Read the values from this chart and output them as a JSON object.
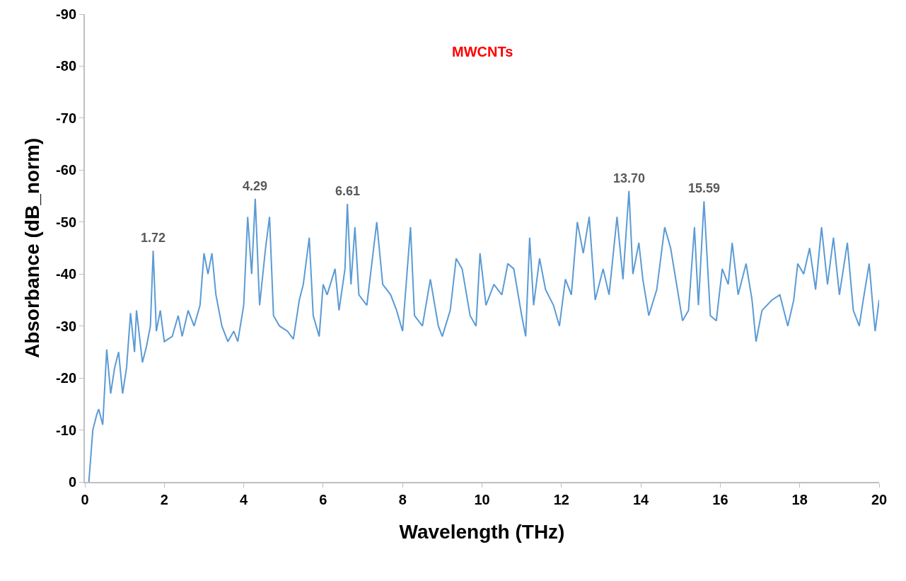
{
  "chart_data": {
    "type": "line",
    "xlabel": "Wavelength (THz)",
    "ylabel": "Absorbance (dB_norm)",
    "annotations": [
      "MWCNTs",
      {
        "text": "1.72",
        "x": 1.72,
        "y": -44.5
      },
      {
        "text": "4.29",
        "x": 4.29,
        "y": -54.5
      },
      {
        "text": "6.61",
        "x": 6.61,
        "y": -53.5
      },
      {
        "text": "13.70",
        "x": 13.7,
        "y": -56
      },
      {
        "text": "15.59",
        "x": 15.59,
        "y": -54
      }
    ],
    "xlim": [
      0,
      20
    ],
    "xticks": [
      0,
      2,
      4,
      6,
      8,
      10,
      12,
      14,
      16,
      18,
      20
    ],
    "ylim": [
      0,
      -90
    ],
    "yticks": [
      0,
      -10,
      -20,
      -30,
      -40,
      -50,
      -60,
      -70,
      -80,
      -90
    ],
    "series": [
      {
        "color": "#5b9bd5",
        "x": [
          0.1,
          0.15,
          0.2,
          0.3,
          0.35,
          0.45,
          0.55,
          0.65,
          0.75,
          0.85,
          0.95,
          1.05,
          1.15,
          1.25,
          1.3,
          1.45,
          1.55,
          1.65,
          1.72,
          1.8,
          1.9,
          2.0,
          2.2,
          2.35,
          2.45,
          2.6,
          2.75,
          2.9,
          3.0,
          3.1,
          3.2,
          3.3,
          3.45,
          3.6,
          3.75,
          3.85,
          4.0,
          4.1,
          4.2,
          4.29,
          4.4,
          4.55,
          4.65,
          4.75,
          4.9,
          5.1,
          5.25,
          5.4,
          5.5,
          5.65,
          5.75,
          5.9,
          6.0,
          6.1,
          6.3,
          6.4,
          6.55,
          6.61,
          6.7,
          6.8,
          6.9,
          7.1,
          7.35,
          7.5,
          7.7,
          7.85,
          8.0,
          8.2,
          8.3,
          8.5,
          8.7,
          8.9,
          9.0,
          9.2,
          9.35,
          9.5,
          9.7,
          9.85,
          9.95,
          10.1,
          10.3,
          10.5,
          10.65,
          10.8,
          11.0,
          11.1,
          11.2,
          11.3,
          11.45,
          11.6,
          11.8,
          11.95,
          12.1,
          12.25,
          12.4,
          12.55,
          12.7,
          12.85,
          13.05,
          13.2,
          13.4,
          13.55,
          13.7,
          13.8,
          13.95,
          14.05,
          14.2,
          14.4,
          14.6,
          14.75,
          14.9,
          15.05,
          15.2,
          15.35,
          15.45,
          15.59,
          15.75,
          15.9,
          16.05,
          16.2,
          16.3,
          16.45,
          16.65,
          16.8,
          16.9,
          17.05,
          17.3,
          17.5,
          17.7,
          17.85,
          17.95,
          18.1,
          18.25,
          18.4,
          18.55,
          18.7,
          18.85,
          19.0,
          19.2,
          19.35,
          19.5,
          19.6,
          19.75,
          19.85,
          19.9,
          20.0
        ],
        "values": [
          0,
          -5,
          -10,
          -13,
          -14,
          -11,
          -25.5,
          -17,
          -22,
          -25,
          -17,
          -22,
          -32.5,
          -25,
          -33,
          -23,
          -26,
          -30,
          -44.5,
          -29,
          -33,
          -27,
          -28,
          -32,
          -28,
          -33,
          -30,
          -34,
          -44,
          -40,
          -44,
          -36,
          -30,
          -27,
          -29,
          -27,
          -34,
          -51,
          -40,
          -54.5,
          -34,
          -45,
          -51,
          -32,
          -30,
          -29,
          -27.5,
          -35,
          -38,
          -47,
          -32,
          -28,
          -38,
          -36,
          -41,
          -33,
          -41,
          -53.5,
          -38,
          -49,
          -36,
          -34,
          -50,
          -38,
          -36,
          -33,
          -29,
          -49,
          -32,
          -30,
          -39,
          -30,
          -28,
          -33,
          -43,
          -41,
          -32,
          -30,
          -44,
          -34,
          -38,
          -36,
          -42,
          -41,
          -32,
          -28,
          -47,
          -34,
          -43,
          -37,
          -34,
          -30,
          -39,
          -36,
          -50,
          -44,
          -51,
          -35,
          -41,
          -36,
          -51,
          -39,
          -56,
          -40,
          -46,
          -39,
          -32,
          -37,
          -49,
          -45,
          -38,
          -31,
          -33,
          -49,
          -34,
          -54,
          -32,
          -31,
          -41,
          -38,
          -46,
          -36,
          -42,
          -35,
          -27,
          -33,
          -35,
          -36,
          -30,
          -35,
          -42,
          -40,
          -45,
          -37,
          -49,
          -38,
          -47,
          -36,
          -46,
          -33,
          -30,
          -35,
          -42,
          -33,
          -29,
          -35
        ]
      }
    ]
  }
}
